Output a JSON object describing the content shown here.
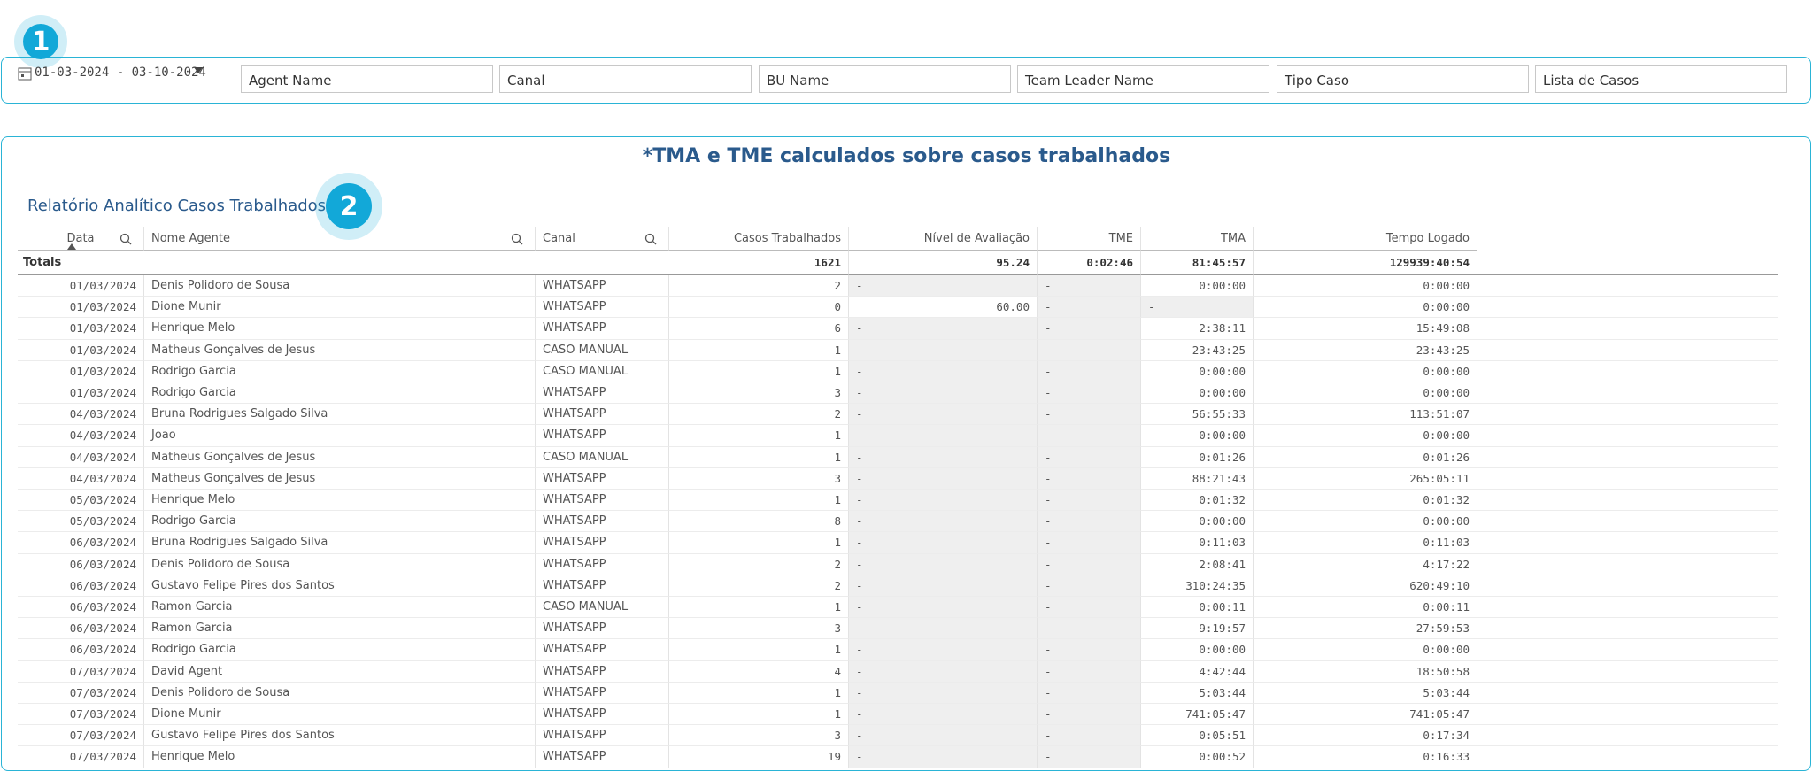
{
  "badges": [
    "1",
    "2"
  ],
  "filters": {
    "date_range": "01-03-2024 - 03-10-2024",
    "fields": [
      "Agent Name",
      "Canal",
      "BU Name",
      "Team Leader Name",
      "Tipo Caso",
      "Lista de Casos"
    ]
  },
  "panel": {
    "title": "*TMA e TME calculados sobre casos trabalhados",
    "table_title": "Relatório Analítico Casos Trabalhados"
  },
  "table": {
    "headers": [
      "Data",
      "Nome Agente",
      "Canal",
      "Casos Trabalhados",
      "Nível de Avaliação",
      "TME",
      "TMA",
      "Tempo Logado"
    ],
    "totals": {
      "label": "Totals",
      "values": [
        "1621",
        "95.24",
        "0:02:46",
        "81:45:57",
        "129939:40:54"
      ]
    },
    "rows": [
      [
        "01/03/2024",
        "Denis Polidoro de Sousa",
        "WHATSAPP",
        "2",
        "-",
        "-",
        "0:00:00",
        "0:00:00"
      ],
      [
        "01/03/2024",
        "Dione Munir",
        "WHATSAPP",
        "0",
        "60.00",
        "-",
        "-",
        "0:00:00"
      ],
      [
        "01/03/2024",
        "Henrique Melo",
        "WHATSAPP",
        "6",
        "-",
        "-",
        "2:38:11",
        "15:49:08"
      ],
      [
        "01/03/2024",
        "Matheus Gonçalves de Jesus",
        "CASO MANUAL",
        "1",
        "-",
        "-",
        "23:43:25",
        "23:43:25"
      ],
      [
        "01/03/2024",
        "Rodrigo Garcia",
        "CASO MANUAL",
        "1",
        "-",
        "-",
        "0:00:00",
        "0:00:00"
      ],
      [
        "01/03/2024",
        "Rodrigo Garcia",
        "WHATSAPP",
        "3",
        "-",
        "-",
        "0:00:00",
        "0:00:00"
      ],
      [
        "04/03/2024",
        "Bruna Rodrigues Salgado Silva",
        "WHATSAPP",
        "2",
        "-",
        "-",
        "56:55:33",
        "113:51:07"
      ],
      [
        "04/03/2024",
        "Joao",
        "WHATSAPP",
        "1",
        "-",
        "-",
        "0:00:00",
        "0:00:00"
      ],
      [
        "04/03/2024",
        "Matheus Gonçalves de Jesus",
        "CASO MANUAL",
        "1",
        "-",
        "-",
        "0:01:26",
        "0:01:26"
      ],
      [
        "04/03/2024",
        "Matheus Gonçalves de Jesus",
        "WHATSAPP",
        "3",
        "-",
        "-",
        "88:21:43",
        "265:05:11"
      ],
      [
        "05/03/2024",
        "Henrique Melo",
        "WHATSAPP",
        "1",
        "-",
        "-",
        "0:01:32",
        "0:01:32"
      ],
      [
        "05/03/2024",
        "Rodrigo Garcia",
        "WHATSAPP",
        "8",
        "-",
        "-",
        "0:00:00",
        "0:00:00"
      ],
      [
        "06/03/2024",
        "Bruna Rodrigues Salgado Silva",
        "WHATSAPP",
        "1",
        "-",
        "-",
        "0:11:03",
        "0:11:03"
      ],
      [
        "06/03/2024",
        "Denis Polidoro de Sousa",
        "WHATSAPP",
        "2",
        "-",
        "-",
        "2:08:41",
        "4:17:22"
      ],
      [
        "06/03/2024",
        "Gustavo Felipe Pires dos Santos",
        "WHATSAPP",
        "2",
        "-",
        "-",
        "310:24:35",
        "620:49:10"
      ],
      [
        "06/03/2024",
        "Ramon Garcia",
        "CASO MANUAL",
        "1",
        "-",
        "-",
        "0:00:11",
        "0:00:11"
      ],
      [
        "06/03/2024",
        "Ramon Garcia",
        "WHATSAPP",
        "3",
        "-",
        "-",
        "9:19:57",
        "27:59:53"
      ],
      [
        "06/03/2024",
        "Rodrigo Garcia",
        "WHATSAPP",
        "1",
        "-",
        "-",
        "0:00:00",
        "0:00:00"
      ],
      [
        "07/03/2024",
        "David Agent",
        "WHATSAPP",
        "4",
        "-",
        "-",
        "4:42:44",
        "18:50:58"
      ],
      [
        "07/03/2024",
        "Denis Polidoro de Sousa",
        "WHATSAPP",
        "1",
        "-",
        "-",
        "5:03:44",
        "5:03:44"
      ],
      [
        "07/03/2024",
        "Dione Munir",
        "WHATSAPP",
        "1",
        "-",
        "-",
        "741:05:47",
        "741:05:47"
      ],
      [
        "07/03/2024",
        "Gustavo Felipe Pires dos Santos",
        "WHATSAPP",
        "3",
        "-",
        "-",
        "0:05:51",
        "0:17:34"
      ],
      [
        "07/03/2024",
        "Henrique Melo",
        "WHATSAPP",
        "19",
        "-",
        "-",
        "0:00:52",
        "0:16:33"
      ]
    ]
  }
}
